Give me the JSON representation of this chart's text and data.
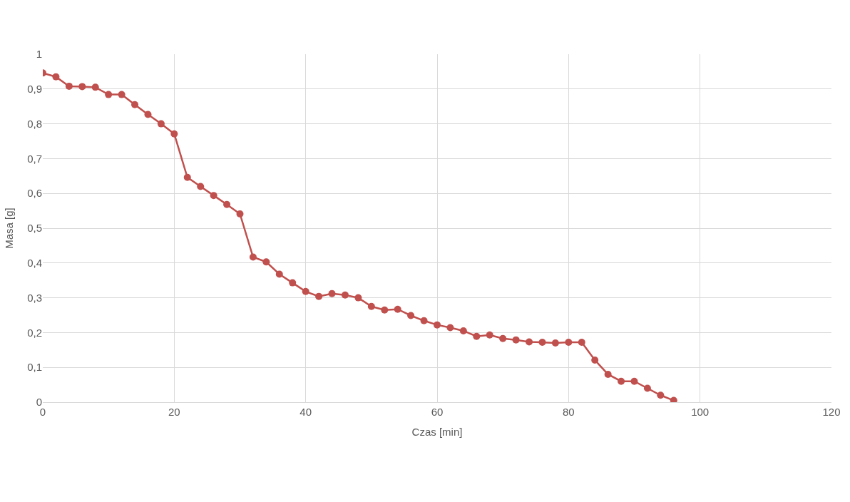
{
  "chart_data": {
    "type": "line",
    "xlabel": "Czas [min]",
    "ylabel": "Masa [g]",
    "x": [
      0,
      2,
      4,
      6,
      8,
      10,
      12,
      14,
      16,
      18,
      20,
      22,
      24,
      26,
      28,
      30,
      32,
      34,
      36,
      38,
      40,
      42,
      44,
      46,
      48,
      50,
      52,
      54,
      56,
      58,
      60,
      62,
      64,
      66,
      68,
      70,
      72,
      74,
      76,
      78,
      80,
      82,
      84,
      86,
      88,
      90,
      92,
      94,
      96
    ],
    "series": [
      {
        "color": "#c0504d",
        "values": [
          0.946,
          0.935,
          0.908,
          0.907,
          0.905,
          0.884,
          0.884,
          0.855,
          0.827,
          0.8,
          0.771,
          0.646,
          0.62,
          0.594,
          0.568,
          0.541,
          0.417,
          0.403,
          0.368,
          0.343,
          0.318,
          0.304,
          0.312,
          0.308,
          0.3,
          0.275,
          0.265,
          0.267,
          0.249,
          0.234,
          0.222,
          0.214,
          0.205,
          0.189,
          0.193,
          0.183,
          0.179,
          0.173,
          0.172,
          0.17,
          0.172,
          0.172,
          0.121,
          0.08,
          0.06,
          0.06,
          0.04,
          0.02,
          0.005
        ]
      }
    ],
    "xlim": [
      0,
      120
    ],
    "xticks": [
      0,
      20,
      40,
      60,
      80,
      100,
      120
    ],
    "ylim": [
      0,
      1
    ],
    "yticks": [
      0,
      {
        "value": 0.1,
        "label": "0,1"
      },
      {
        "value": 0.2,
        "label": "0,2"
      },
      {
        "value": 0.3,
        "label": "0,3"
      },
      {
        "value": 0.4,
        "label": "0,4"
      },
      {
        "value": 0.5,
        "label": "0,5"
      },
      {
        "value": 0.6,
        "label": "0,6"
      },
      {
        "value": 0.7,
        "label": "0,7"
      },
      {
        "value": 0.8,
        "label": "0,8"
      },
      {
        "value": 0.9,
        "label": "0,9"
      },
      1
    ],
    "grid": true,
    "marker": "circle",
    "line_style": "solid"
  }
}
